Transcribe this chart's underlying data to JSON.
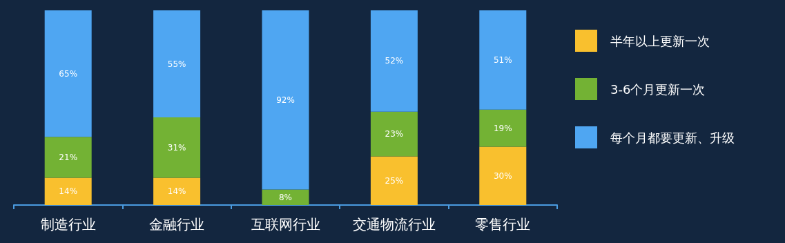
{
  "chart_data": {
    "type": "bar",
    "stacked": true,
    "legend": "right",
    "categories": [
      "制造行业",
      "金融行业",
      "互联网行业",
      "交通物流行业",
      "零售行业"
    ],
    "series": [
      {
        "name": "半年以上更新一次",
        "color": "#f9c02e",
        "values": [
          14,
          14,
          null,
          25,
          30
        ],
        "value_labels": [
          "14%",
          "14%",
          null,
          "25%",
          "30%"
        ]
      },
      {
        "name": "3-6个月更新一次",
        "color": "#73b234",
        "values": [
          21,
          31,
          8,
          23,
          19
        ],
        "value_labels": [
          "21%",
          "31%",
          "8%",
          "23%",
          "19%"
        ]
      },
      {
        "name": "每个月都要更新、升级",
        "color": "#4fa6f2",
        "values": [
          65,
          55,
          92,
          52,
          51
        ],
        "value_labels": [
          "65%",
          "55%",
          "92%",
          "52%",
          "51%"
        ]
      }
    ]
  }
}
